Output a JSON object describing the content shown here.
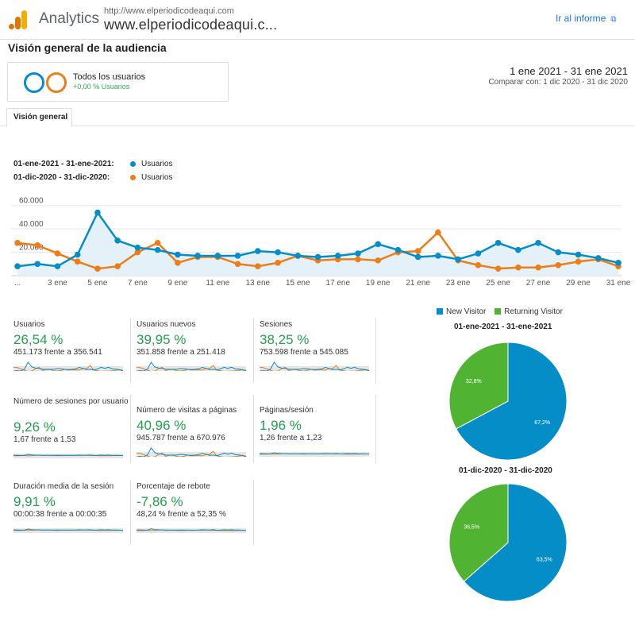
{
  "header": {
    "app_name": "Analytics",
    "site_url": "http://www.elperiodicodeaqui.com",
    "site_name": "www.elperiodicodeaqui.c...",
    "report_link": "Ir al informe"
  },
  "page_title": "Visión general de la audiencia",
  "segment": {
    "name": "Todos los usuarios",
    "delta": "+0,00 % Usuarios"
  },
  "date_range": {
    "main": "1 ene 2021 - 31 ene 2021",
    "compare": "Comparar con: 1 dic 2020 - 31 dic 2020"
  },
  "tabs": [
    "Visión general"
  ],
  "colors": {
    "blue": "#058dc7",
    "orange": "#ed7e17",
    "green": "#50b432",
    "accent": "#1a73e8"
  },
  "chart_data": [
    {
      "type": "line",
      "series": [
        {
          "name": "01-ene-2021 - 31-ene-2021:",
          "metric": "Usuarios",
          "values": [
            8000,
            10000,
            8000,
            18000,
            54000,
            30000,
            24000,
            22000,
            18000,
            17000,
            17000,
            17000,
            21000,
            20000,
            17000,
            16000,
            17000,
            19000,
            27000,
            22000,
            16000,
            17000,
            14000,
            19000,
            28000,
            22000,
            28000,
            20000,
            18000,
            15000,
            11000
          ]
        },
        {
          "name": "01-dic-2020 - 31-dic-2020:",
          "metric": "Usuarios",
          "values": [
            28000,
            26000,
            19000,
            12000,
            6000,
            8000,
            20000,
            28000,
            11000,
            16000,
            16000,
            10000,
            8000,
            11000,
            17000,
            13000,
            14000,
            14000,
            13000,
            20000,
            21000,
            37000,
            13000,
            9000,
            6000,
            7000,
            7000,
            9000,
            12000,
            14000,
            8000
          ]
        }
      ],
      "x_labels": [
        "...",
        "3 ene",
        "5 ene",
        "7 ene",
        "9 ene",
        "11 ene",
        "13 ene",
        "15 ene",
        "17 ene",
        "19 ene",
        "21 ene",
        "23 ene",
        "25 ene",
        "27 ene",
        "29 ene",
        "31 ene"
      ],
      "y_ticks": [
        "60.000",
        "40.000",
        "20.000"
      ],
      "ylim": [
        0,
        70000
      ]
    },
    {
      "type": "pie",
      "title": "01-ene-2021 - 31-ene-2021",
      "legend": [
        "New Visitor",
        "Returning Visitor"
      ],
      "values": [
        67.2,
        32.8
      ],
      "labels": [
        "67,2%",
        "32,8%"
      ]
    },
    {
      "type": "pie",
      "title": "01-dic-2020 - 31-dic-2020",
      "legend": [
        "New Visitor",
        "Returning Visitor"
      ],
      "values": [
        63.5,
        36.5
      ],
      "labels": [
        "63,5%",
        "36,5%"
      ]
    }
  ],
  "metrics": [
    {
      "label": "Usuarios",
      "value": "26,54 %",
      "compare": "451.173 frente a 356.541"
    },
    {
      "label": "Usuarios nuevos",
      "value": "39,95 %",
      "compare": "351.858 frente a 251.418"
    },
    {
      "label": "Sesiones",
      "value": "38,25 %",
      "compare": "753.598 frente a 545.085"
    },
    {
      "label": "Número de sesiones por usuario",
      "value": "9,26 %",
      "compare": "1,67 frente a 1,53"
    },
    {
      "label": "Número de visitas a páginas",
      "value": "40,96 %",
      "compare": "945.787 frente a 670.976"
    },
    {
      "label": "Páginas/sesión",
      "value": "1,96 %",
      "compare": "1,26 frente a 1,23"
    },
    {
      "label": "Duración media de la sesión",
      "value": "9,91 %",
      "compare": "00:00:38 frente a 00:00:35"
    },
    {
      "label": "Porcentaje de rebote",
      "value": "-7,86 %",
      "compare": "48,24 % frente a 52,35 %"
    }
  ]
}
